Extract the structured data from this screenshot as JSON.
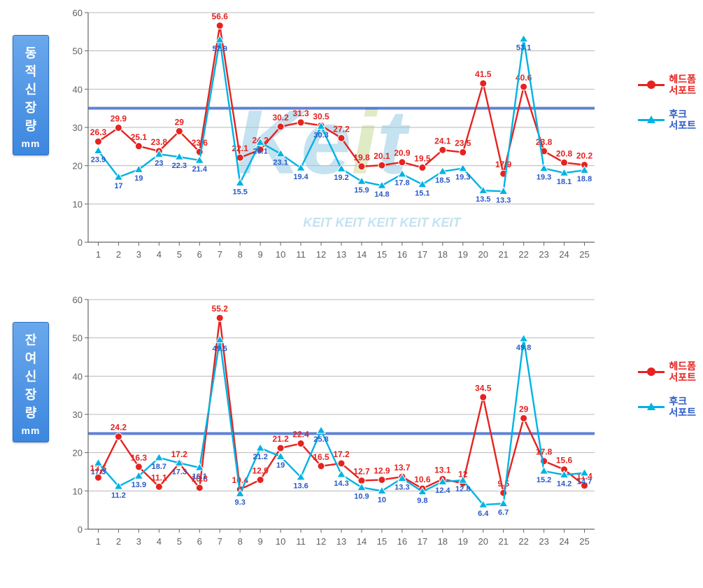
{
  "charts": [
    {
      "ylabel_chars": [
        "동",
        "적",
        "신",
        "장",
        "량"
      ],
      "unit": "mm",
      "categories": [
        1,
        2,
        3,
        4,
        5,
        6,
        7,
        8,
        9,
        10,
        11,
        12,
        13,
        14,
        15,
        16,
        17,
        18,
        19,
        20,
        21,
        22,
        23,
        24,
        25
      ],
      "ylim": [
        0,
        60
      ],
      "ytick_step": 10,
      "ref_line": 35,
      "ref_line_color": "#2a59c7",
      "series": [
        {
          "name": "헤드폼\n서포트",
          "color": "#e52320",
          "marker": "circle",
          "values": [
            26.3,
            29.9,
            25.1,
            23.8,
            29,
            23.6,
            56.6,
            22.1,
            24.2,
            30.2,
            31.3,
            30.5,
            27.2,
            19.8,
            20.1,
            20.9,
            19.5,
            24.1,
            23.5,
            41.5,
            17.9,
            40.6,
            23.8,
            20.8,
            20.2
          ]
        },
        {
          "name": "후크\n서포트",
          "color": "#00b3e3",
          "marker": "triangle",
          "values": [
            23.9,
            17,
            19,
            23,
            22.3,
            21.4,
            52.9,
            15.5,
            26.1,
            23.1,
            19.4,
            30.3,
            19.2,
            15.9,
            14.8,
            17.8,
            15.1,
            18.5,
            19.3,
            13.5,
            13.3,
            53.1,
            19.3,
            18.1,
            18.8
          ]
        }
      ],
      "background_color": "#ffffff",
      "gridline_color": "#b8b8b8",
      "axis_color": "#666666",
      "tick_label_color": "#606060",
      "tick_fontsize": 13,
      "datalabel_fontsize_red": 12,
      "datalabel_fontsize_blue": 11,
      "has_watermark": true
    },
    {
      "ylabel_chars": [
        "잔",
        "여",
        "신",
        "장",
        "량"
      ],
      "unit": "mm",
      "categories": [
        1,
        2,
        3,
        4,
        5,
        6,
        7,
        8,
        9,
        10,
        11,
        12,
        13,
        14,
        15,
        16,
        17,
        18,
        19,
        20,
        21,
        22,
        23,
        24,
        25
      ],
      "ylim": [
        0,
        60
      ],
      "ytick_step": 10,
      "ref_line": 25,
      "ref_line_color": "#2a59c7",
      "series": [
        {
          "name": "헤드폼\n서포트",
          "color": "#e52320",
          "marker": "circle",
          "values": [
            13.5,
            24.2,
            16.3,
            11.1,
            17.2,
            10.8,
            55.2,
            10.4,
            12.9,
            21.2,
            22.4,
            16.5,
            17.2,
            12.7,
            12.9,
            13.7,
            10.6,
            13.1,
            12,
            34.5,
            9.5,
            29,
            17.8,
            15.6,
            11.4
          ]
        },
        {
          "name": "후크\n서포트",
          "color": "#00b3e3",
          "marker": "triangle",
          "values": [
            17.3,
            11.2,
            13.9,
            18.7,
            17.3,
            16.1,
            49.5,
            9.3,
            21.2,
            19,
            13.6,
            25.8,
            14.3,
            10.9,
            10,
            13.3,
            9.8,
            12.4,
            12.8,
            6.4,
            6.7,
            49.8,
            15.2,
            14.2,
            14.7
          ]
        }
      ],
      "background_color": "#ffffff",
      "gridline_color": "#b8b8b8",
      "axis_color": "#666666",
      "tick_label_color": "#606060",
      "tick_fontsize": 13,
      "datalabel_fontsize_red": 12,
      "datalabel_fontsize_blue": 11,
      "has_watermark": false
    }
  ],
  "watermark": {
    "text": "Keit",
    "subtext": "KEIT KEIT KEIT KEIT KEIT",
    "color1": "#2f99cc",
    "color2": "#8fbb33",
    "color3": "#e39e2b"
  }
}
